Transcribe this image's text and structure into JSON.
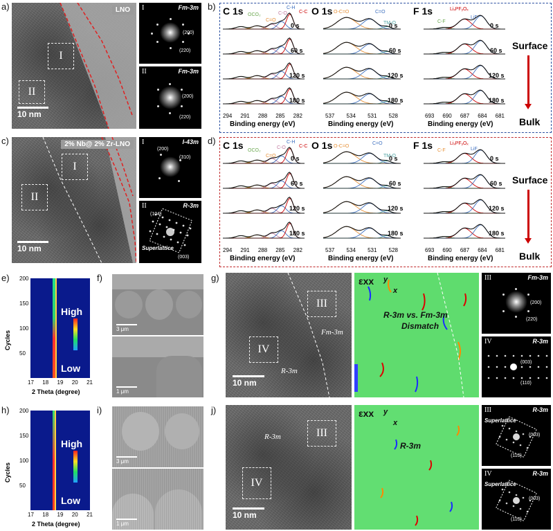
{
  "panels": {
    "a": "a)",
    "b": "b)",
    "c": "c)",
    "d": "d)",
    "e": "e)",
    "f": "f)",
    "g": "g)",
    "h": "h)",
    "i": "i)",
    "j": "j)"
  },
  "tem_a": {
    "tag": "LNO",
    "box1": "I",
    "box2": "II",
    "scale": "10 nm"
  },
  "tem_c": {
    "tag": "2% Nb@ 2% Zr-LNO",
    "box1": "I",
    "box2": "II",
    "scale": "10 nm"
  },
  "fft_a1": {
    "num": "I",
    "sg": "Fm-3m",
    "i1": "(200)",
    "i2": "(220)"
  },
  "fft_a2": {
    "num": "II",
    "sg": "Fm-3m",
    "i1": "(200)",
    "i2": "(220)"
  },
  "fft_c1": {
    "num": "I",
    "sg": "I-43m",
    "i1": "(200)",
    "i2": "(310)"
  },
  "fft_c2": {
    "num": "II",
    "sg": "R-3m",
    "i1": "(104)",
    "i2": "(003)",
    "sup": "Superlattice"
  },
  "xps_b": {
    "c1s": "C 1s",
    "o1s": "O 1s",
    "f1s": "F 1s",
    "times": [
      "0 s",
      "60 s",
      "120 s",
      "180 s"
    ],
    "c_peaks": [
      "OCO₂",
      "C=O",
      "C-O",
      "C-H",
      "C-C"
    ],
    "o_peaks": [
      "O-C=O",
      "C=O",
      "TM-O"
    ],
    "f_peaks": [
      "C-F",
      "LiₓPFᵧOₓ",
      "LiF"
    ],
    "c_ticks": [
      "294",
      "291",
      "288",
      "285",
      "282"
    ],
    "o_ticks": [
      "537",
      "534",
      "531",
      "528"
    ],
    "f_ticks": [
      "693",
      "690",
      "687",
      "684",
      "681"
    ],
    "xlabel": "Binding energy (eV)",
    "surface": "Surface",
    "bulk": "Bulk"
  },
  "xps_d": {
    "c1s": "C 1s",
    "o1s": "O 1s",
    "f1s": "F 1s",
    "times": [
      "0 s",
      "60 s",
      "120 s",
      "180 s"
    ],
    "c_peaks": [
      "OCO₂",
      "C=O",
      "C-O",
      "C-H",
      "C-C"
    ],
    "o_peaks": [
      "O-C=O",
      "C=O",
      "TM-O"
    ],
    "f_peaks": [
      "C-F",
      "LiₓPFᵧOₓ",
      "LiF"
    ],
    "c_ticks": [
      "294",
      "291",
      "288",
      "285",
      "282"
    ],
    "o_ticks": [
      "537",
      "534",
      "531",
      "528"
    ],
    "f_ticks": [
      "693",
      "690",
      "687",
      "684",
      "681"
    ],
    "xlabel": "Binding energy (eV)",
    "surface": "Surface",
    "bulk": "Bulk"
  },
  "heat_e": {
    "ylabel": "Cycles",
    "xlabel": "2 Theta (degree)",
    "yt": [
      "200",
      "150",
      "100",
      "50"
    ],
    "xt": [
      "17",
      "18",
      "19",
      "20",
      "21"
    ],
    "high": "High",
    "low": "Low"
  },
  "heat_h": {
    "ylabel": "Cycles",
    "xlabel": "2 Theta (degree)",
    "yt": [
      "200",
      "150",
      "100",
      "50"
    ],
    "xt": [
      "17",
      "18",
      "19",
      "20",
      "21"
    ],
    "high": "High",
    "low": "Low"
  },
  "sem_f": {
    "s1": "3 μm",
    "s2": "1 μm"
  },
  "sem_i": {
    "s1": "3 μm",
    "s2": "1 μm"
  },
  "g": {
    "box3": "III",
    "box4": "IV",
    "fm": "Fm-3m",
    "r": "R-3m",
    "scale": "10 nm",
    "exx": "εxx",
    "y": "y",
    "x": "x",
    "mismatch1": "R-3m vs. Fm-3m",
    "mismatch2": "Dismatch",
    "f3": {
      "num": "III",
      "sg": "Fm-3m",
      "i1": "(200)",
      "i2": "(220)"
    },
    "f4": {
      "num": "IV",
      "sg": "R-3m",
      "i1": "(003)",
      "i2": "(110)"
    }
  },
  "j": {
    "box3": "III",
    "box4": "IV",
    "r": "R-3m",
    "scale": "10 nm",
    "exx": "εxx",
    "y": "y",
    "x": "x",
    "r2": "R-3m",
    "f3": {
      "num": "III",
      "sg": "R-3m",
      "sup": "Superlattice",
      "i1": "(003)",
      "i2": "(110)"
    },
    "f4": {
      "num": "IV",
      "sg": "R-3m",
      "sup": "Superlattice",
      "i1": "(003)",
      "i2": "(110)"
    }
  },
  "colors": {
    "blue_frame": "#2a4fa0",
    "red_frame": "#c0282a"
  }
}
